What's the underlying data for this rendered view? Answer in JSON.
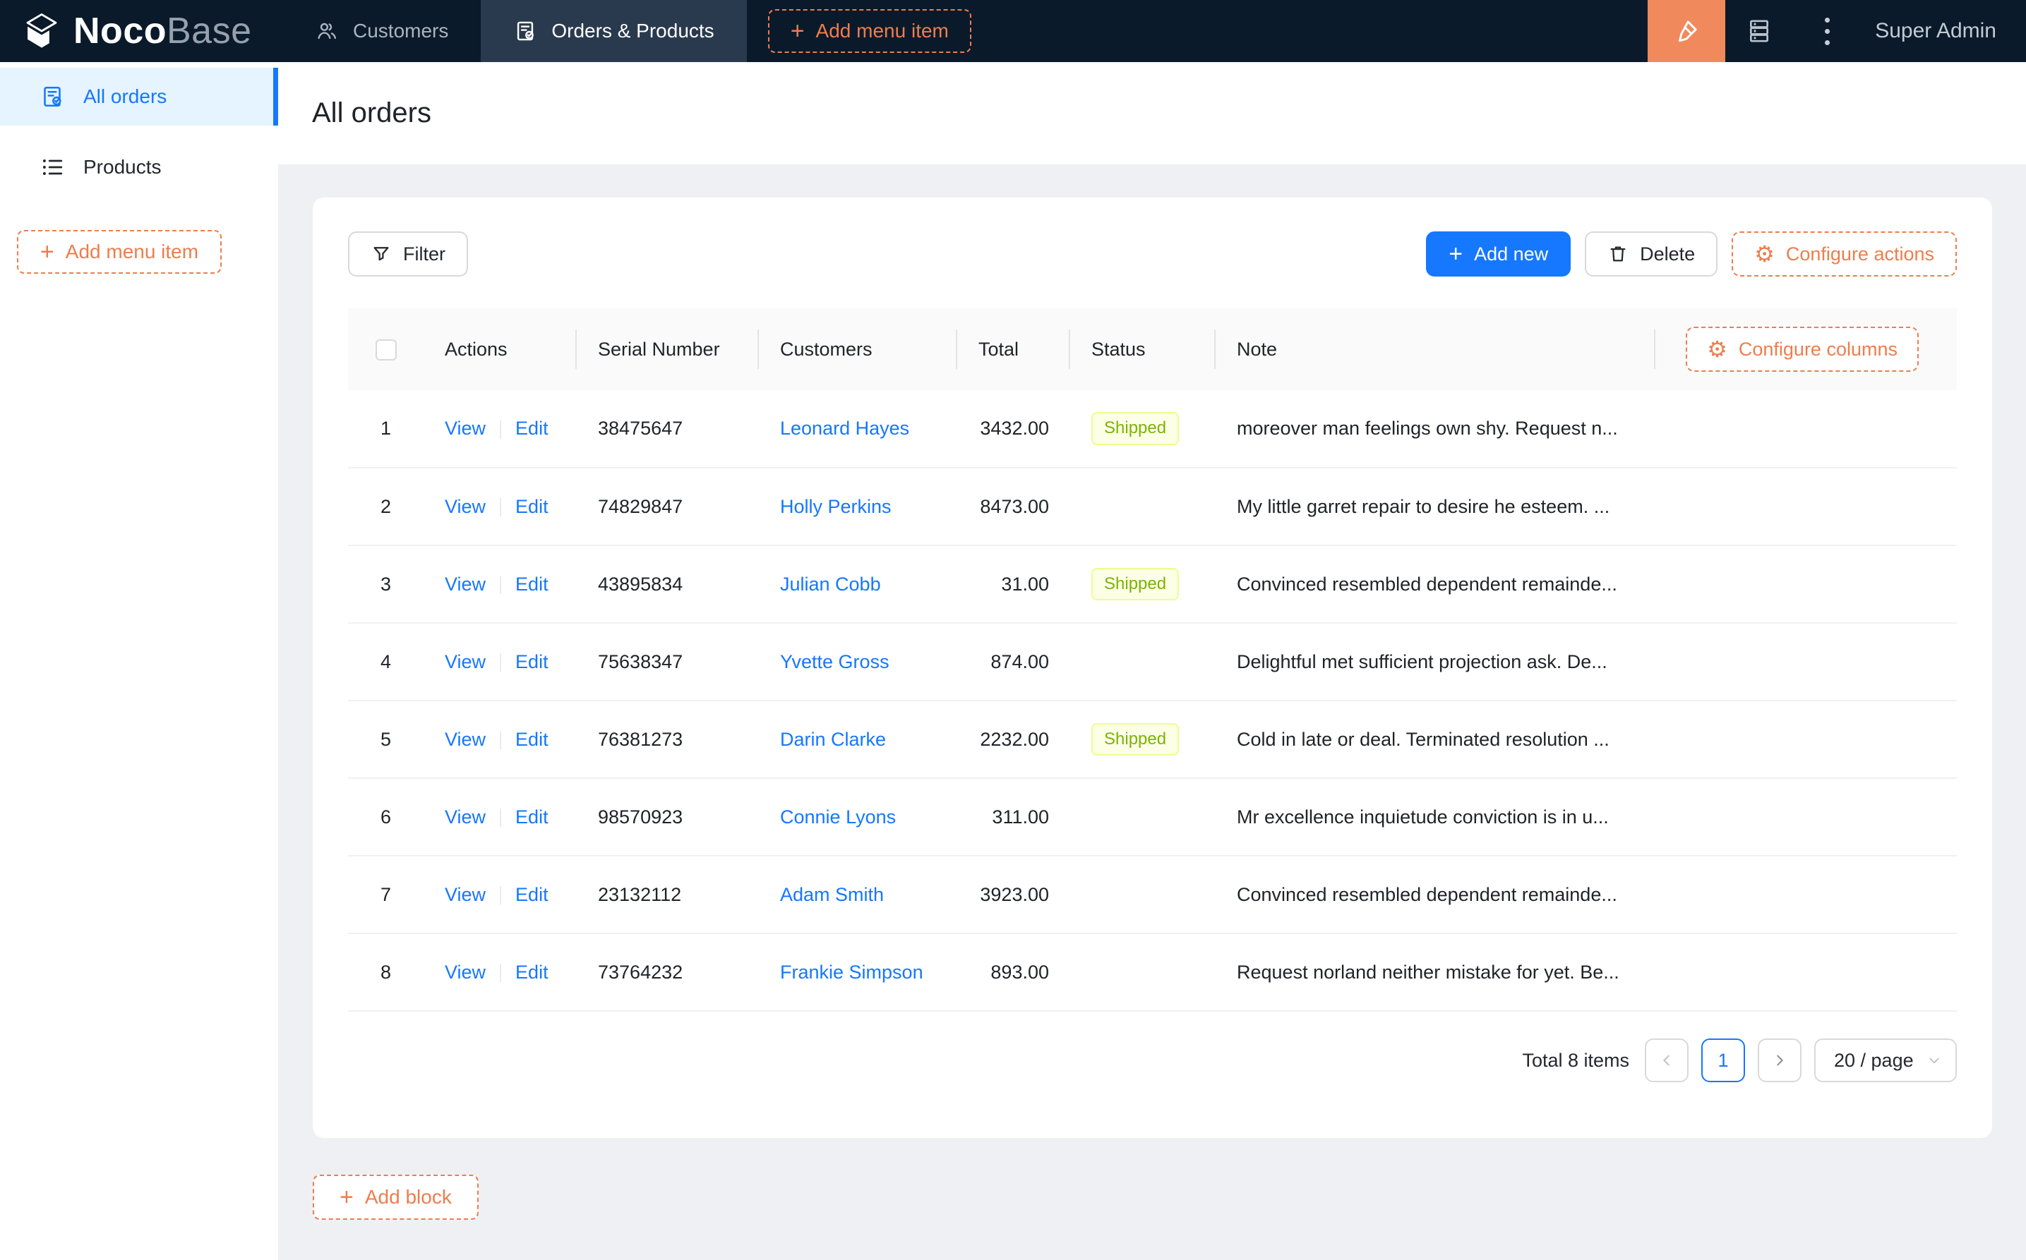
{
  "colors": {
    "navbar_bg": "#0a1a2b",
    "navbar_active_tab_bg": "#2a3a4e",
    "accent_orange": "#ee7d4d",
    "ui_editor_button_bg": "#f0895c",
    "primary_blue": "#1677ff",
    "sidebar_active_bg": "#e6f4ff",
    "status_shipped_bg": "#fcffe6",
    "status_shipped_border": "#eaff8f",
    "status_shipped_text": "#7cb305"
  },
  "icons": {
    "plus": "+",
    "gear": "⚙"
  },
  "navbar": {
    "logo_noco": "Noco",
    "logo_base": "Base",
    "tabs": [
      {
        "label": "Customers"
      },
      {
        "label": "Orders & Products"
      }
    ],
    "add_menu_item_label": "Add menu item",
    "user_name": "Super Admin"
  },
  "sidebar": {
    "items": [
      {
        "label": "All orders"
      },
      {
        "label": "Products"
      }
    ],
    "add_menu_item_label": "Add menu item"
  },
  "page": {
    "title": "All orders"
  },
  "toolbar": {
    "filter_label": "Filter",
    "add_new_label": "Add new",
    "delete_label": "Delete",
    "configure_actions_label": "Configure actions"
  },
  "table": {
    "configure_columns_label": "Configure columns",
    "columns": [
      "Actions",
      "Serial Number",
      "Customers",
      "Total",
      "Status",
      "Note"
    ],
    "action_labels": {
      "view": "View",
      "edit": "Edit"
    },
    "rows": [
      {
        "index": 1,
        "serial": "38475647",
        "customer": "Leonard Hayes",
        "total": "3432.00",
        "status": "Shipped",
        "note": "moreover man feelings own shy. Request n..."
      },
      {
        "index": 2,
        "serial": "74829847",
        "customer": "Holly Perkins",
        "total": "8473.00",
        "status": "",
        "note": "My little garret repair to desire he esteem. ..."
      },
      {
        "index": 3,
        "serial": "43895834",
        "customer": "Julian Cobb",
        "total": "31.00",
        "status": "Shipped",
        "note": "Convinced resembled dependent remainde..."
      },
      {
        "index": 4,
        "serial": "75638347",
        "customer": "Yvette Gross",
        "total": "874.00",
        "status": "",
        "note": "Delightful met sufficient projection ask. De..."
      },
      {
        "index": 5,
        "serial": "76381273",
        "customer": "Darin Clarke",
        "total": "2232.00",
        "status": "Shipped",
        "note": "Cold in late or deal. Terminated resolution ..."
      },
      {
        "index": 6,
        "serial": "98570923",
        "customer": "Connie Lyons",
        "total": "311.00",
        "status": "",
        "note": "Mr excellence inquietude conviction is in u..."
      },
      {
        "index": 7,
        "serial": "23132112",
        "customer": "Adam Smith",
        "total": "3923.00",
        "status": "",
        "note": "Convinced resembled dependent remainde..."
      },
      {
        "index": 8,
        "serial": "73764232",
        "customer": "Frankie Simpson",
        "total": "893.00",
        "status": "",
        "note": "Request norland neither mistake for yet. Be..."
      }
    ]
  },
  "pagination": {
    "total_text": "Total 8 items",
    "current_page": "1",
    "page_size_label": "20 / page"
  },
  "add_block_label": "Add block"
}
